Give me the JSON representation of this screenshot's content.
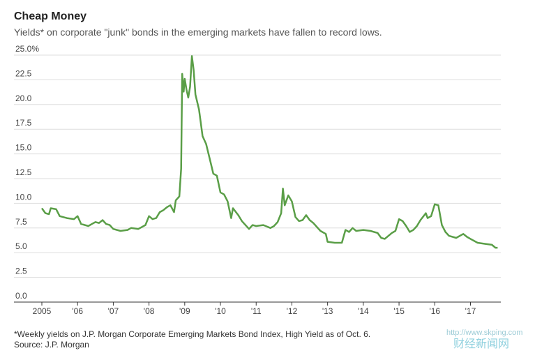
{
  "chart_data": {
    "type": "line",
    "title": "Cheap Money",
    "subtitle": "Yields* on corporate \"junk\" bonds in the emerging markets have fallen to record lows.",
    "footnote": "*Weekly yields on J.P. Morgan Corporate Emerging Markets Bond Index, High Yield as of Oct. 6.",
    "source": "Source: J.P. Morgan",
    "watermark": "http://www.skping.com",
    "watermark_name": "财经新闻网",
    "xlim": [
      2005,
      2017.85
    ],
    "xticks": [
      {
        "value": 2005,
        "label": "2005"
      },
      {
        "value": 2006,
        "label": "'06"
      },
      {
        "value": 2007,
        "label": "'07"
      },
      {
        "value": 2008,
        "label": "'08"
      },
      {
        "value": 2009,
        "label": "'09"
      },
      {
        "value": 2010,
        "label": "'10"
      },
      {
        "value": 2011,
        "label": "'11"
      },
      {
        "value": 2012,
        "label": "'12"
      },
      {
        "value": 2013,
        "label": "'13"
      },
      {
        "value": 2014,
        "label": "'14"
      },
      {
        "value": 2015,
        "label": "'15"
      },
      {
        "value": 2016,
        "label": "'16"
      },
      {
        "value": 2017,
        "label": "'17"
      }
    ],
    "ylim": [
      0,
      25
    ],
    "yticks": [
      {
        "value": 25,
        "label": "25.0%"
      },
      22.5,
      {
        "value": 20,
        "label": "20.0"
      },
      17.5,
      {
        "value": 15,
        "label": "15.0"
      },
      12.5,
      {
        "value": 10,
        "label": "10.0"
      },
      7.5,
      {
        "value": 5,
        "label": "5.0"
      },
      2.5,
      {
        "value": 0,
        "label": "0.0"
      }
    ],
    "grid": true,
    "series": [
      {
        "name": "High yield",
        "color": "#5a9e47",
        "x": [
          2005.0,
          2005.1,
          2005.2,
          2005.25,
          2005.4,
          2005.5,
          2005.7,
          2005.9,
          2006.0,
          2006.1,
          2006.3,
          2006.4,
          2006.5,
          2006.6,
          2006.7,
          2006.8,
          2006.9,
          2007.0,
          2007.2,
          2007.4,
          2007.5,
          2007.7,
          2007.9,
          2008.0,
          2008.1,
          2008.2,
          2008.3,
          2008.4,
          2008.5,
          2008.6,
          2008.7,
          2008.75,
          2008.85,
          2008.9,
          2008.93,
          2008.97,
          2009.0,
          2009.05,
          2009.1,
          2009.15,
          2009.2,
          2009.25,
          2009.3,
          2009.4,
          2009.5,
          2009.6,
          2009.7,
          2009.8,
          2009.9,
          2010.0,
          2010.1,
          2010.2,
          2010.3,
          2010.35,
          2010.5,
          2010.6,
          2010.7,
          2010.8,
          2010.9,
          2011.0,
          2011.2,
          2011.4,
          2011.5,
          2011.6,
          2011.7,
          2011.75,
          2011.8,
          2011.9,
          2012.0,
          2012.1,
          2012.2,
          2012.3,
          2012.4,
          2012.5,
          2012.6,
          2012.8,
          2012.95,
          2013.0,
          2013.2,
          2013.4,
          2013.5,
          2013.6,
          2013.7,
          2013.8,
          2014.0,
          2014.2,
          2014.4,
          2014.5,
          2014.6,
          2014.8,
          2014.9,
          2015.0,
          2015.1,
          2015.2,
          2015.3,
          2015.4,
          2015.5,
          2015.6,
          2015.75,
          2015.8,
          2015.9,
          2016.0,
          2016.1,
          2016.2,
          2016.3,
          2016.4,
          2016.6,
          2016.8,
          2016.9,
          2017.0,
          2017.2,
          2017.4,
          2017.6,
          2017.7,
          2017.76
        ],
        "values": [
          9.5,
          9.0,
          8.9,
          9.5,
          9.4,
          8.7,
          8.5,
          8.4,
          8.7,
          7.9,
          7.7,
          7.9,
          8.1,
          8.0,
          8.3,
          7.9,
          7.8,
          7.4,
          7.2,
          7.3,
          7.5,
          7.4,
          7.8,
          8.7,
          8.4,
          8.5,
          9.1,
          9.3,
          9.6,
          9.8,
          9.1,
          10.3,
          10.7,
          13.5,
          23.1,
          21.3,
          22.6,
          21.5,
          20.7,
          21.8,
          24.9,
          23.5,
          21.0,
          19.5,
          16.8,
          16.0,
          14.5,
          13.0,
          12.8,
          11.1,
          10.9,
          10.2,
          8.5,
          9.5,
          8.8,
          8.2,
          7.8,
          7.4,
          7.8,
          7.7,
          7.8,
          7.5,
          7.7,
          8.1,
          9.0,
          11.5,
          9.8,
          10.8,
          10.2,
          8.6,
          8.2,
          8.3,
          8.8,
          8.3,
          8.0,
          7.2,
          6.9,
          6.1,
          6.0,
          6.0,
          7.3,
          7.1,
          7.5,
          7.2,
          7.3,
          7.2,
          7.0,
          6.5,
          6.4,
          7.0,
          7.2,
          8.4,
          8.2,
          7.7,
          7.1,
          7.3,
          7.7,
          8.3,
          9.0,
          8.5,
          8.7,
          9.9,
          9.8,
          7.8,
          7.1,
          6.7,
          6.5,
          6.9,
          6.6,
          6.4,
          6.0,
          5.9,
          5.8,
          5.5,
          5.5
        ]
      }
    ]
  }
}
